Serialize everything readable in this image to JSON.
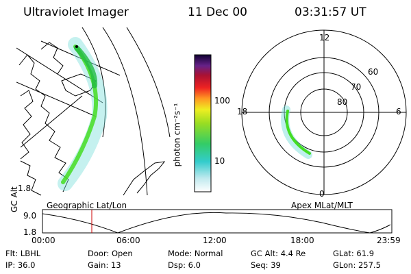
{
  "header": {
    "title": "Ultraviolet Imager",
    "date": "11 Dec 00",
    "time": "03:31:57 UT"
  },
  "colorbar": {
    "unit_label": "photon cm⁻²s⁻¹",
    "ticks": [
      "100",
      "10"
    ]
  },
  "geographic_panel": {
    "label": "Geographic Lat/Lon",
    "scale": "1.8"
  },
  "polar_panel": {
    "label": "Apex MLat/MLT",
    "mlt_labels": {
      "top": "12",
      "left": "18",
      "right": "6",
      "bottom": "0"
    },
    "mlat_labels": [
      "60",
      "70",
      "80"
    ]
  },
  "altitude_plot": {
    "ylabel": "GC Alt",
    "y_ticks": [
      "9.0",
      "1.8"
    ],
    "x_ticks": [
      "00:00",
      "06:00",
      "12:00",
      "18:00",
      "23:59"
    ]
  },
  "info": {
    "flt": "Flt: LBHL",
    "door": "Door: Open",
    "mode": "Mode: Normal",
    "gc_alt": "GC Alt: 4.4 Re",
    "glat": "GLat:  61.9",
    "ip": "IP: 36.0",
    "gain": "Gain: 13",
    "dsp": "Dsp:     6.0",
    "seq": "Seq: 39",
    "glon": "GLon: 257.5"
  },
  "colors": {
    "marker": "#cc0000",
    "aurora_bright": "#44dd22",
    "aurora_dim": "#7ee0dc"
  }
}
